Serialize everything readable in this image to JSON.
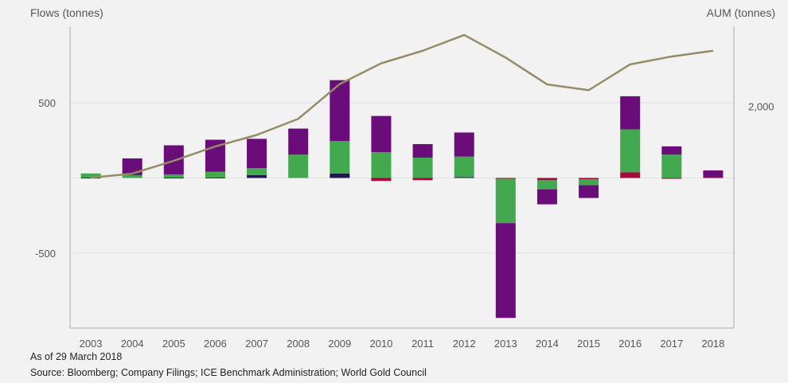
{
  "header": {
    "left_axis_title": "Flows (tonnes)",
    "right_axis_title": "AUM (tonnes)"
  },
  "footer": {
    "as_of": "As of 29 March 2018",
    "source": "Source: Bloomberg; Company Filings; ICE Benchmark Administration; World Gold Council"
  },
  "colors": {
    "background": "#f2f2f2",
    "plot_background": "#f2f2f2",
    "axis": "#aaaaaa",
    "grid": "#e0e0e0",
    "segment_navy": "#1f1a4e",
    "segment_red": "#a30b3c",
    "segment_green": "#43a94f",
    "segment_purple": "#6a0d7a",
    "aum_line": "#958c66"
  },
  "chart_data": {
    "type": "bar",
    "stacked": true,
    "categories": [
      "2003",
      "2004",
      "2005",
      "2006",
      "2007",
      "2008",
      "2009",
      "2010",
      "2011",
      "2012",
      "2013",
      "2014",
      "2015",
      "2016",
      "2017",
      "2018"
    ],
    "series": [
      {
        "color": "#1f1a4e",
        "values": [
          2,
          0,
          2,
          3,
          19,
          0,
          30,
          0,
          0,
          6,
          0,
          0,
          0,
          0,
          0,
          0
        ]
      },
      {
        "color": "#a30b3c",
        "values": [
          0,
          0,
          0,
          0,
          0,
          0,
          0,
          -20,
          -15,
          0,
          -5,
          -15,
          -8,
          38,
          -5,
          5
        ]
      },
      {
        "color": "#43a94f",
        "values": [
          28,
          18,
          22,
          38,
          46,
          155,
          215,
          172,
          135,
          136,
          -295,
          -60,
          -40,
          285,
          155,
          0
        ]
      },
      {
        "color": "#6a0d7a",
        "values": [
          0,
          112,
          193,
          213,
          195,
          173,
          405,
          240,
          90,
          160,
          -630,
          -100,
          -85,
          220,
          55,
          45
        ]
      }
    ],
    "aum_line": {
      "color": "#958c66",
      "values": [
        10,
        120,
        480,
        880,
        1200,
        1650,
        2620,
        3200,
        3550,
        3990,
        3360,
        2610,
        2450,
        3170,
        3390,
        3550
      ]
    },
    "yticks_left": [
      "500",
      "-500"
    ],
    "yticks_left_values": [
      500,
      -500
    ],
    "yticks_right": [
      "2,000"
    ],
    "ylim": [
      -1000,
      1000
    ],
    "y2lim": [
      -4200,
      4200
    ],
    "grid": true,
    "legend": "none"
  }
}
